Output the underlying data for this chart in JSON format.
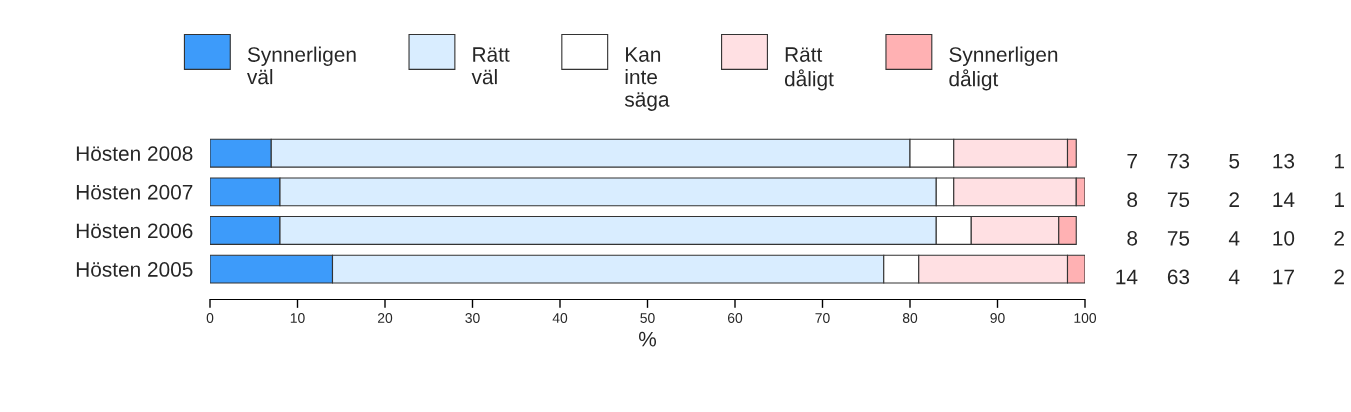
{
  "chart_data": {
    "type": "bar",
    "orientation": "horizontal",
    "stacked": true,
    "categories": [
      "Hösten 2008",
      "Hösten 2007",
      "Hösten 2006",
      "Hösten 2005"
    ],
    "series": [
      {
        "name": "Synnerligen\nväl",
        "color": "#3d9bfa",
        "values": [
          7,
          8,
          8,
          14
        ]
      },
      {
        "name": "Rätt\nväl",
        "color": "#d9edff",
        "values": [
          73,
          75,
          75,
          63
        ]
      },
      {
        "name": "Kan\ninte\nsäga",
        "color": "#ffffff",
        "values": [
          5,
          2,
          4,
          4
        ]
      },
      {
        "name": "Rätt\ndåligt",
        "color": "#ffe0e3",
        "values": [
          13,
          14,
          10,
          17
        ]
      },
      {
        "name": "Synnerligen\ndåligt",
        "color": "#ffb1b3",
        "values": [
          1,
          1,
          2,
          2
        ]
      }
    ],
    "xlabel": "%",
    "xlim": [
      0,
      100
    ],
    "xticks": [
      0,
      10,
      20,
      30,
      40,
      50,
      60,
      70,
      80,
      90,
      100
    ],
    "grid": false,
    "legend": "top",
    "data_labels": true
  }
}
